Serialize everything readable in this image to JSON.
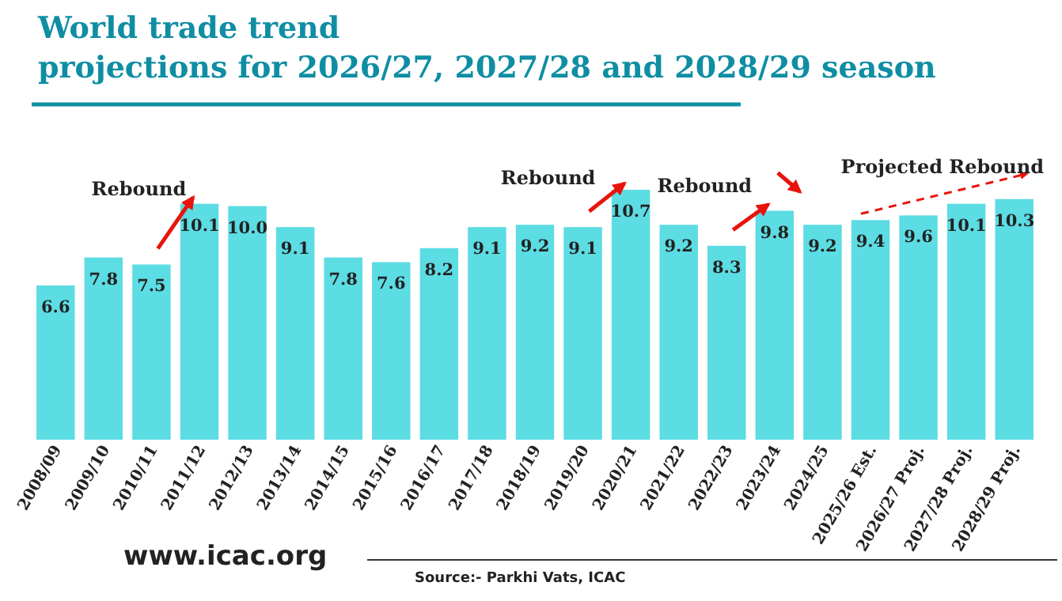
{
  "chart_data": {
    "type": "bar",
    "title": "World trade trend\nprojections for 2026/27, 2027/28 and 2028/29 season",
    "categories": [
      "2008/09",
      "2009/10",
      "2010/11",
      "2011/12",
      "2012/13",
      "2013/14",
      "2014/15",
      "2015/16",
      "2016/17",
      "2017/18",
      "2018/19",
      "2019/20",
      "2020/21",
      "2021/22",
      "2022/23",
      "2023/24",
      "2024/25",
      "2025/26 Est.",
      "2026/27 Proj.",
      "2027/28 Proj.",
      "2028/29 Proj."
    ],
    "values": [
      6.6,
      7.8,
      7.5,
      10.1,
      10.0,
      9.1,
      7.8,
      7.6,
      8.2,
      9.1,
      9.2,
      9.1,
      10.7,
      9.2,
      8.3,
      9.8,
      9.2,
      9.4,
      9.6,
      10.1,
      10.3
    ],
    "color": "#5cdce3",
    "value_labels": [
      "6.6",
      "7.8",
      "7.5",
      "10.1",
      "10.0",
      "9.1",
      "7.8",
      "7.6",
      "8.2",
      "9.1",
      "9.2",
      "9.1",
      "10.7",
      "9.2",
      "8.3",
      "9.8",
      "9.2",
      "9.4",
      "9.6",
      "10.1",
      "10.3"
    ],
    "annotations": [
      "Rebound",
      "Rebound",
      "Rebound",
      "Projected Rebound",
      "www.icac.org",
      "Source:- Parkhi Vats, ICAC"
    ]
  }
}
